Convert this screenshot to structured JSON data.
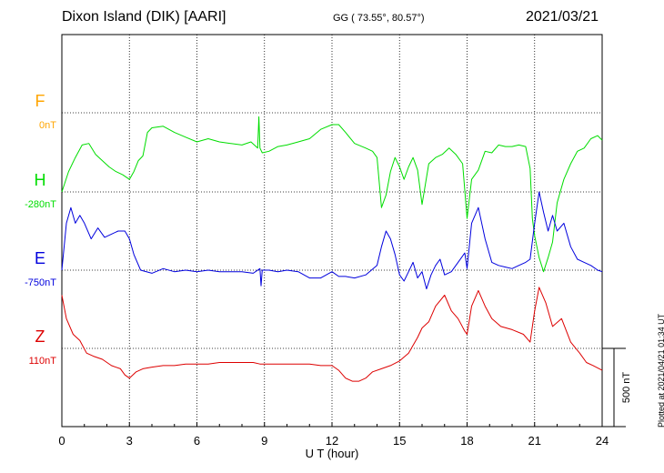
{
  "header": {
    "station": "Dixon Island (DIK)  [AARI]",
    "coords": "GG ( 73.55°,  80.57°)",
    "date": "2021/03/21"
  },
  "plotted": "Plotted at 2021/04/21 01:34 UT",
  "colors": {
    "F": "#ffa500",
    "H": "#00dd00",
    "E": "#0000dd",
    "Z": "#dd0000"
  },
  "chart_data": {
    "type": "line",
    "xlabel": "U T (hour)",
    "xlim": [
      0,
      24
    ],
    "xticks": [
      0,
      3,
      6,
      9,
      12,
      15,
      18,
      21,
      24
    ],
    "scale_bar": "500 nT",
    "grid": true,
    "series": [
      {
        "name": "F",
        "baseline": "0nT",
        "offset": 0,
        "x": [],
        "y": []
      },
      {
        "name": "H",
        "baseline": "-280nT",
        "offset": 0,
        "x": [
          0,
          0.3,
          0.6,
          0.9,
          1.2,
          1.5,
          1.8,
          2.1,
          2.4,
          2.7,
          3.0,
          3.2,
          3.4,
          3.6,
          3.8,
          4.0,
          4.5,
          5.0,
          5.5,
          6.0,
          6.5,
          7.0,
          7.5,
          8.0,
          8.4,
          8.7,
          8.75,
          8.8,
          8.9,
          9.2,
          9.6,
          10.0,
          10.5,
          11.0,
          11.5,
          12.0,
          12.3,
          12.6,
          13.0,
          13.5,
          13.8,
          14.0,
          14.2,
          14.4,
          14.6,
          14.8,
          15.0,
          15.2,
          15.4,
          15.6,
          15.8,
          16.0,
          16.3,
          16.6,
          16.9,
          17.2,
          17.5,
          17.8,
          18.0,
          18.2,
          18.5,
          18.8,
          19.1,
          19.4,
          19.7,
          20.0,
          20.3,
          20.6,
          20.8,
          20.9,
          21.0,
          21.2,
          21.4,
          21.6,
          21.8,
          22.0,
          22.3,
          22.6,
          22.9,
          23.2,
          23.5,
          23.8,
          24.0
        ],
        "y": [
          -280,
          -150,
          -60,
          20,
          30,
          -40,
          -80,
          -120,
          -150,
          -170,
          -200,
          -150,
          -80,
          -50,
          100,
          130,
          140,
          100,
          70,
          40,
          60,
          40,
          30,
          20,
          40,
          0,
          200,
          0,
          -30,
          -20,
          10,
          20,
          40,
          60,
          120,
          150,
          150,
          100,
          30,
          0,
          -20,
          -60,
          -380,
          -300,
          -150,
          -60,
          -120,
          -200,
          -120,
          -60,
          -140,
          -360,
          -100,
          -60,
          -40,
          0,
          -40,
          -100,
          -450,
          -200,
          -140,
          -20,
          -30,
          20,
          10,
          10,
          20,
          10,
          -130,
          -450,
          -560,
          -700,
          -790,
          -700,
          -600,
          -350,
          -200,
          -100,
          -20,
          0,
          60,
          80,
          50
        ]
      },
      {
        "name": "E",
        "baseline": "-750nT",
        "offset": 0,
        "x": [
          0,
          0.2,
          0.4,
          0.6,
          0.8,
          1.0,
          1.3,
          1.6,
          1.9,
          2.2,
          2.5,
          2.8,
          3.0,
          3.2,
          3.5,
          4.0,
          4.5,
          5.0,
          5.5,
          6.0,
          6.5,
          7.0,
          7.5,
          8.0,
          8.5,
          8.8,
          8.85,
          8.9,
          9.2,
          9.6,
          10.0,
          10.5,
          11.0,
          11.5,
          12.0,
          12.3,
          12.6,
          13.0,
          13.5,
          14.0,
          14.2,
          14.4,
          14.6,
          14.8,
          15.0,
          15.2,
          15.4,
          15.6,
          15.8,
          16.0,
          16.2,
          16.4,
          16.6,
          16.8,
          17.0,
          17.3,
          17.6,
          17.9,
          18.0,
          18.2,
          18.5,
          18.8,
          19.1,
          19.4,
          19.7,
          20.0,
          20.3,
          20.6,
          20.8,
          21.0,
          21.2,
          21.4,
          21.6,
          21.8,
          22.0,
          22.3,
          22.6,
          22.9,
          23.2,
          23.5,
          23.8,
          24.0
        ],
        "y": [
          -750,
          -450,
          -350,
          -450,
          -400,
          -450,
          -550,
          -480,
          -540,
          -520,
          -500,
          -500,
          -550,
          -650,
          -750,
          -770,
          -740,
          -760,
          -750,
          -760,
          -750,
          -760,
          -760,
          -760,
          -770,
          -740,
          -850,
          -750,
          -750,
          -760,
          -750,
          -760,
          -800,
          -800,
          -760,
          -790,
          -790,
          -800,
          -780,
          -720,
          -600,
          -500,
          -550,
          -650,
          -780,
          -820,
          -760,
          -700,
          -800,
          -760,
          -870,
          -780,
          -720,
          -680,
          -780,
          -760,
          -700,
          -640,
          -740,
          -450,
          -350,
          -550,
          -700,
          -720,
          -730,
          -740,
          -720,
          -700,
          -680,
          -450,
          -250,
          -380,
          -500,
          -400,
          -500,
          -450,
          -600,
          -680,
          -700,
          -720,
          -750,
          -760
        ]
      },
      {
        "name": "Z",
        "baseline": "110nT",
        "offset": 0,
        "x": [
          0,
          0.2,
          0.5,
          0.8,
          1.1,
          1.4,
          1.8,
          2.2,
          2.6,
          2.8,
          3.0,
          3.3,
          3.6,
          4.0,
          4.5,
          5.0,
          5.5,
          6.0,
          6.5,
          7.0,
          7.5,
          8.0,
          8.5,
          8.8,
          8.9,
          9.2,
          9.6,
          10.0,
          10.5,
          11.0,
          11.5,
          12.0,
          12.3,
          12.6,
          12.9,
          13.2,
          13.5,
          13.8,
          14.2,
          14.6,
          15.0,
          15.4,
          15.8,
          16.0,
          16.3,
          16.6,
          17.0,
          17.3,
          17.6,
          17.9,
          18.0,
          18.2,
          18.5,
          18.8,
          19.1,
          19.5,
          20.0,
          20.5,
          20.8,
          21.0,
          21.2,
          21.5,
          21.8,
          22.2,
          22.6,
          23.0,
          23.3,
          23.6,
          24.0
        ],
        "y": [
          450,
          300,
          200,
          160,
          80,
          60,
          40,
          0,
          -20,
          -60,
          -80,
          -40,
          -20,
          -10,
          0,
          0,
          10,
          10,
          10,
          20,
          20,
          20,
          20,
          10,
          10,
          10,
          10,
          10,
          10,
          10,
          0,
          0,
          -30,
          -80,
          -100,
          -100,
          -80,
          -40,
          -20,
          0,
          30,
          80,
          180,
          240,
          280,
          380,
          450,
          350,
          300,
          220,
          200,
          380,
          480,
          380,
          300,
          250,
          230,
          200,
          150,
          350,
          500,
          400,
          250,
          300,
          150,
          80,
          20,
          0,
          -30
        ]
      }
    ]
  }
}
